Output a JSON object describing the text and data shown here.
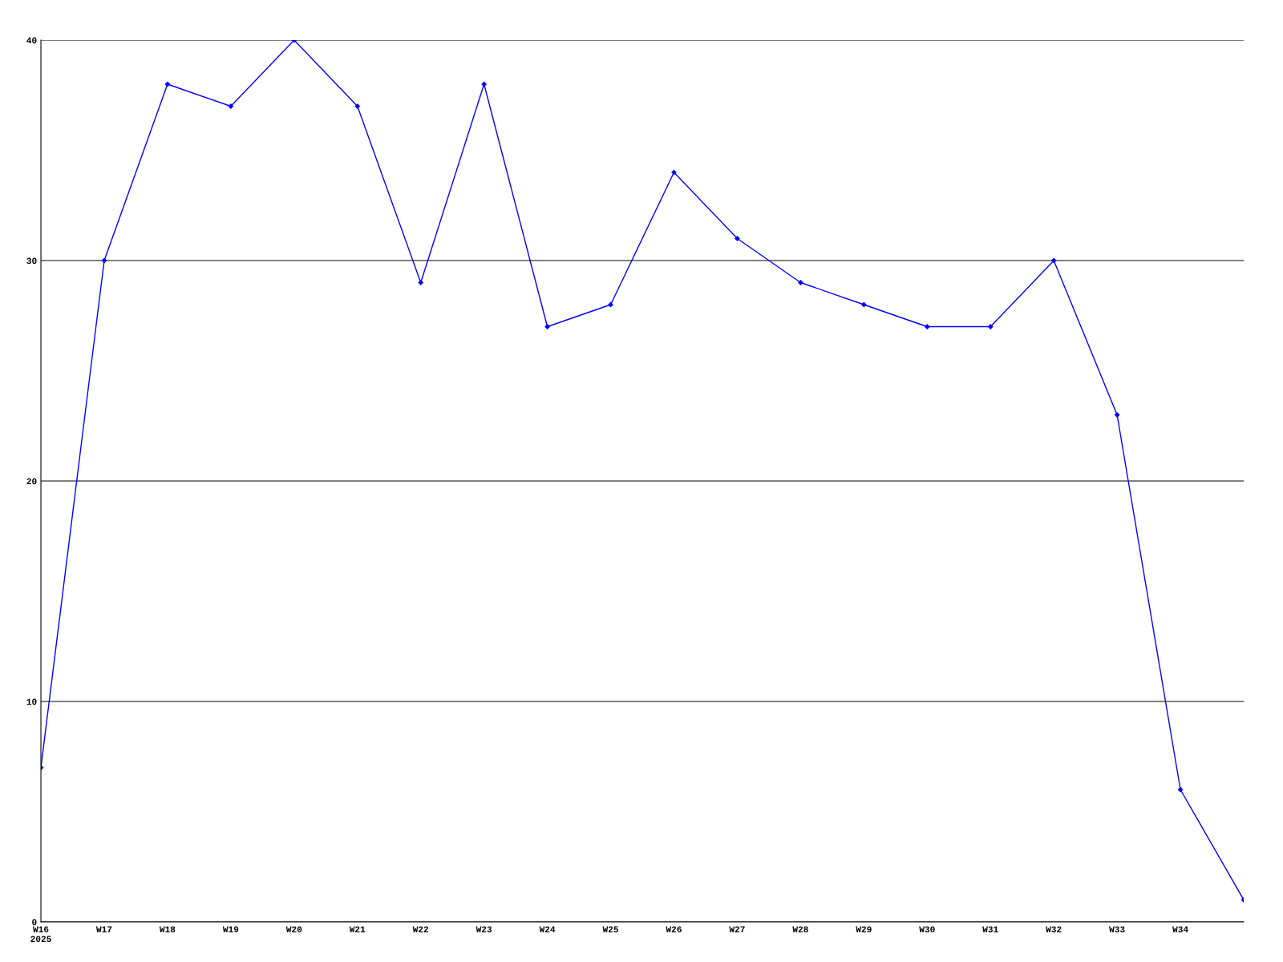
{
  "chart_data": {
    "type": "line",
    "categories": [
      "W16\n2025",
      "W17",
      "W18",
      "W19",
      "W20",
      "W21",
      "W22",
      "W23",
      "W24",
      "W25",
      "W26",
      "W27",
      "W28",
      "W29",
      "W30",
      "W31",
      "W32",
      "W33",
      "W34",
      null
    ],
    "series": [
      {
        "color": "#0000ff",
        "values": [
          7,
          30,
          38,
          37,
          40,
          37,
          29,
          38,
          27,
          28,
          34,
          31,
          29,
          28,
          27,
          27,
          30,
          23,
          6,
          1
        ]
      }
    ],
    "ylim": [
      0,
      40
    ],
    "yticks": [
      0,
      10,
      20,
      30,
      40
    ],
    "grid": "y",
    "marker": "diamond",
    "line_style": "solid"
  }
}
